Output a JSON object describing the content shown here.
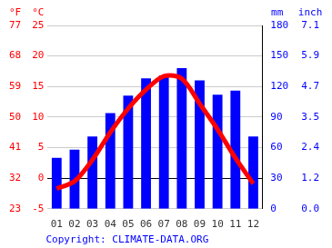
{
  "chart_data": {
    "type": "bar",
    "categories": [
      "01",
      "02",
      "03",
      "04",
      "05",
      "06",
      "07",
      "08",
      "09",
      "10",
      "11",
      "12"
    ],
    "series": [
      {
        "type": "bar",
        "color": "#0000ff",
        "axis": "y2",
        "values": [
          50,
          58,
          71,
          94,
          111,
          128,
          131,
          138,
          126,
          112,
          116,
          71
        ]
      },
      {
        "type": "line",
        "color": "#ff0000",
        "values": [
          -1.7,
          -0.5,
          3,
          7.5,
          11.4,
          14.5,
          16.7,
          16.3,
          12.2,
          8,
          3.3,
          -0.9
        ]
      }
    ],
    "ylabel": "°C",
    "ylim": [
      -5,
      25
    ],
    "yticks": [
      -5,
      0,
      5,
      10,
      15,
      20,
      25
    ],
    "y2label": "mm",
    "y2lim": [
      0,
      180
    ],
    "y2ticks": [
      0,
      30,
      60,
      90,
      120,
      150,
      180
    ],
    "y3label": "°F",
    "y3lim": [
      23,
      77
    ],
    "y3ticks": [
      23,
      32,
      41,
      50,
      59,
      68,
      77
    ],
    "y4label": "inch",
    "y4lim": [
      0,
      7.087
    ],
    "y4ticks": [
      {
        "value": 0,
        "label": "0.0"
      },
      {
        "value": 1.181,
        "label": "1.2"
      },
      {
        "value": 2.362,
        "label": "2.4"
      },
      {
        "value": 3.543,
        "label": "3.5"
      },
      {
        "value": 4.724,
        "label": "4.7"
      },
      {
        "value": 5.906,
        "label": "5.9"
      },
      {
        "value": 7.087,
        "label": "7.1"
      }
    ],
    "grid": true,
    "footer": "Copyright: CLIMATE-DATA.ORG"
  }
}
